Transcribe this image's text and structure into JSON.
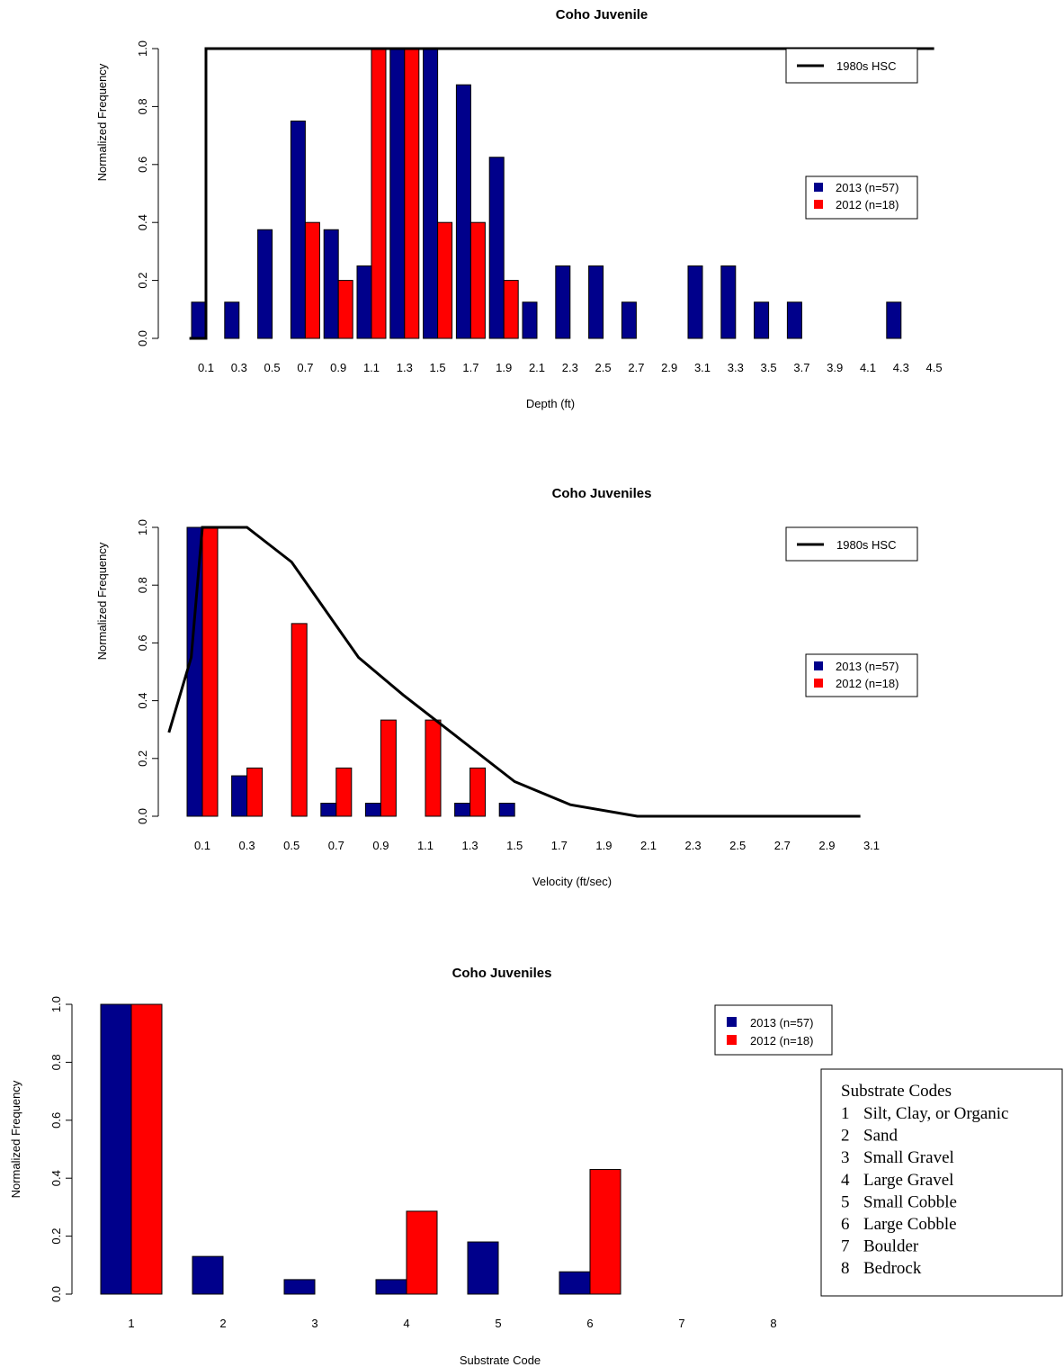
{
  "colors": {
    "series_2013": "#00008B",
    "series_2012": "#FF0000",
    "hsc_line": "#000000"
  },
  "chart_data": [
    {
      "type": "bar",
      "title": "Coho Juvenile",
      "xlabel": "Depth (ft)",
      "ylabel": "Normalized Frequency",
      "ylim": [
        0,
        1
      ],
      "yticks": [
        "0.0",
        "0.2",
        "0.4",
        "0.6",
        "0.8",
        "1.0"
      ],
      "categories": [
        "0.1",
        "0.3",
        "0.5",
        "0.7",
        "0.9",
        "1.1",
        "1.3",
        "1.5",
        "1.7",
        "1.9",
        "2.1",
        "2.3",
        "2.5",
        "2.7",
        "2.9",
        "3.1",
        "3.3",
        "3.5",
        "3.7",
        "3.9",
        "4.1",
        "4.3",
        "4.5"
      ],
      "series": [
        {
          "name": "2013 (n=57)",
          "values": [
            0.125,
            0.125,
            0.375,
            0.75,
            0.375,
            0.25,
            1.0,
            1.0,
            0.875,
            0.625,
            0.125,
            0.25,
            0.25,
            0.125,
            0,
            0.25,
            0.25,
            0.125,
            0.125,
            0,
            0,
            0.125,
            0
          ]
        },
        {
          "name": "2012 (n=18)",
          "values": [
            0,
            0,
            0,
            0.4,
            0.2,
            1.0,
            1.0,
            0.4,
            0.4,
            0.2,
            0,
            0,
            0,
            0,
            0,
            0,
            0,
            0,
            0,
            0,
            0,
            0,
            0
          ]
        }
      ],
      "hsc": {
        "name": "1980s HSC",
        "x": [
          0.0,
          0.1,
          0.1,
          4.5
        ],
        "y": [
          0,
          0,
          1,
          1
        ]
      },
      "legend_position": "right",
      "hsc_legend_position": "top-right"
    },
    {
      "type": "bar",
      "title": "Coho Juveniles",
      "xlabel": "Velocity (ft/sec)",
      "ylabel": "Normalized Frequency",
      "ylim": [
        0,
        1
      ],
      "yticks": [
        "0.0",
        "0.2",
        "0.4",
        "0.6",
        "0.8",
        "1.0"
      ],
      "categories": [
        "0.1",
        "0.3",
        "0.5",
        "0.7",
        "0.9",
        "1.1",
        "1.3",
        "1.5",
        "1.7",
        "1.9",
        "2.1",
        "2.3",
        "2.5",
        "2.7",
        "2.9",
        "3.1"
      ],
      "series": [
        {
          "name": "2013 (n=57)",
          "values": [
            1.0,
            0.14,
            0,
            0.045,
            0.045,
            0,
            0.045,
            0.045,
            0,
            0,
            0,
            0,
            0,
            0,
            0,
            0
          ]
        },
        {
          "name": "2012 (n=18)",
          "values": [
            1.0,
            0.167,
            0.667,
            0.167,
            0.333,
            0.333,
            0.167,
            0,
            0,
            0,
            0,
            0,
            0,
            0,
            0,
            0
          ]
        }
      ],
      "hsc": {
        "name": "1980s HSC",
        "x": [
          -0.05,
          0.05,
          0.1,
          0.3,
          0.5,
          0.8,
          1.0,
          1.2,
          1.5,
          1.75,
          2.05,
          3.05
        ],
        "y": [
          0.29,
          0.55,
          1.0,
          1.0,
          0.88,
          0.55,
          0.42,
          0.3,
          0.12,
          0.04,
          0,
          0
        ]
      },
      "legend_position": "right",
      "hsc_legend_position": "top-right"
    },
    {
      "type": "bar",
      "title": "Coho Juveniles",
      "xlabel": "Substrate Code",
      "ylabel": "Normalized Frequency",
      "ylim": [
        0,
        1
      ],
      "yticks": [
        "0.0",
        "0.2",
        "0.4",
        "0.6",
        "0.8",
        "1.0"
      ],
      "categories": [
        "1",
        "2",
        "3",
        "4",
        "5",
        "6",
        "7",
        "8"
      ],
      "series": [
        {
          "name": "2013 (n=57)",
          "values": [
            1.0,
            0.13,
            0.05,
            0.05,
            0.18,
            0.077,
            0,
            0
          ]
        },
        {
          "name": "2012 (n=18)",
          "values": [
            1.0,
            0,
            0,
            0.286,
            0,
            0.43,
            0,
            0
          ]
        }
      ],
      "legend_position": "top-right"
    }
  ],
  "substrate_codes": {
    "title": "Substrate Codes",
    "items": [
      {
        "code": "1",
        "label": "Silt, Clay, or Organic"
      },
      {
        "code": "2",
        "label": "Sand"
      },
      {
        "code": "3",
        "label": "Small Gravel"
      },
      {
        "code": "4",
        "label": "Large Gravel"
      },
      {
        "code": "5",
        "label": "Small Cobble"
      },
      {
        "code": "6",
        "label": "Large Cobble"
      },
      {
        "code": "7",
        "label": "Boulder"
      },
      {
        "code": "8",
        "label": "Bedrock"
      }
    ]
  }
}
